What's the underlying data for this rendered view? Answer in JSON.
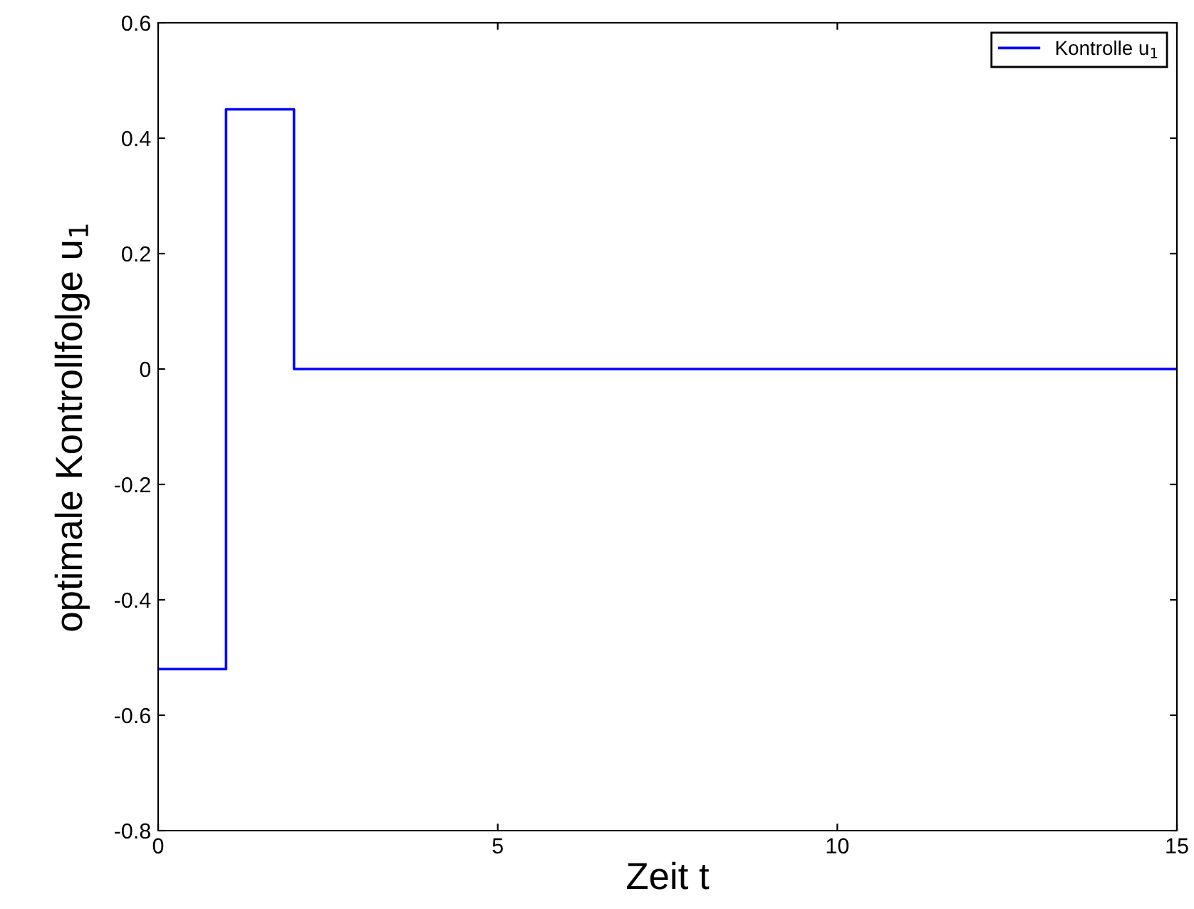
{
  "chart_data": {
    "type": "step",
    "xlabel": "Zeit t",
    "ylabel": "optimale Kontrollfolge u$_{1}$",
    "x": [
      0,
      1,
      2,
      15
    ],
    "series": [
      {
        "name": "Kontrolle u$_{1}$",
        "color": "#0000ff",
        "values": [
          -0.52,
          0.45,
          0,
          0
        ]
      }
    ],
    "xlim": [
      0,
      15
    ],
    "xticks": [
      0,
      5,
      10,
      15
    ],
    "ylim": [
      -0.8,
      0.6
    ],
    "yticks": [
      -0.8,
      -0.6,
      -0.4,
      -0.2,
      0,
      0.2,
      0.4,
      0.6
    ],
    "grid": false,
    "legend": "top right",
    "line_style": "solid",
    "marker": "none"
  }
}
